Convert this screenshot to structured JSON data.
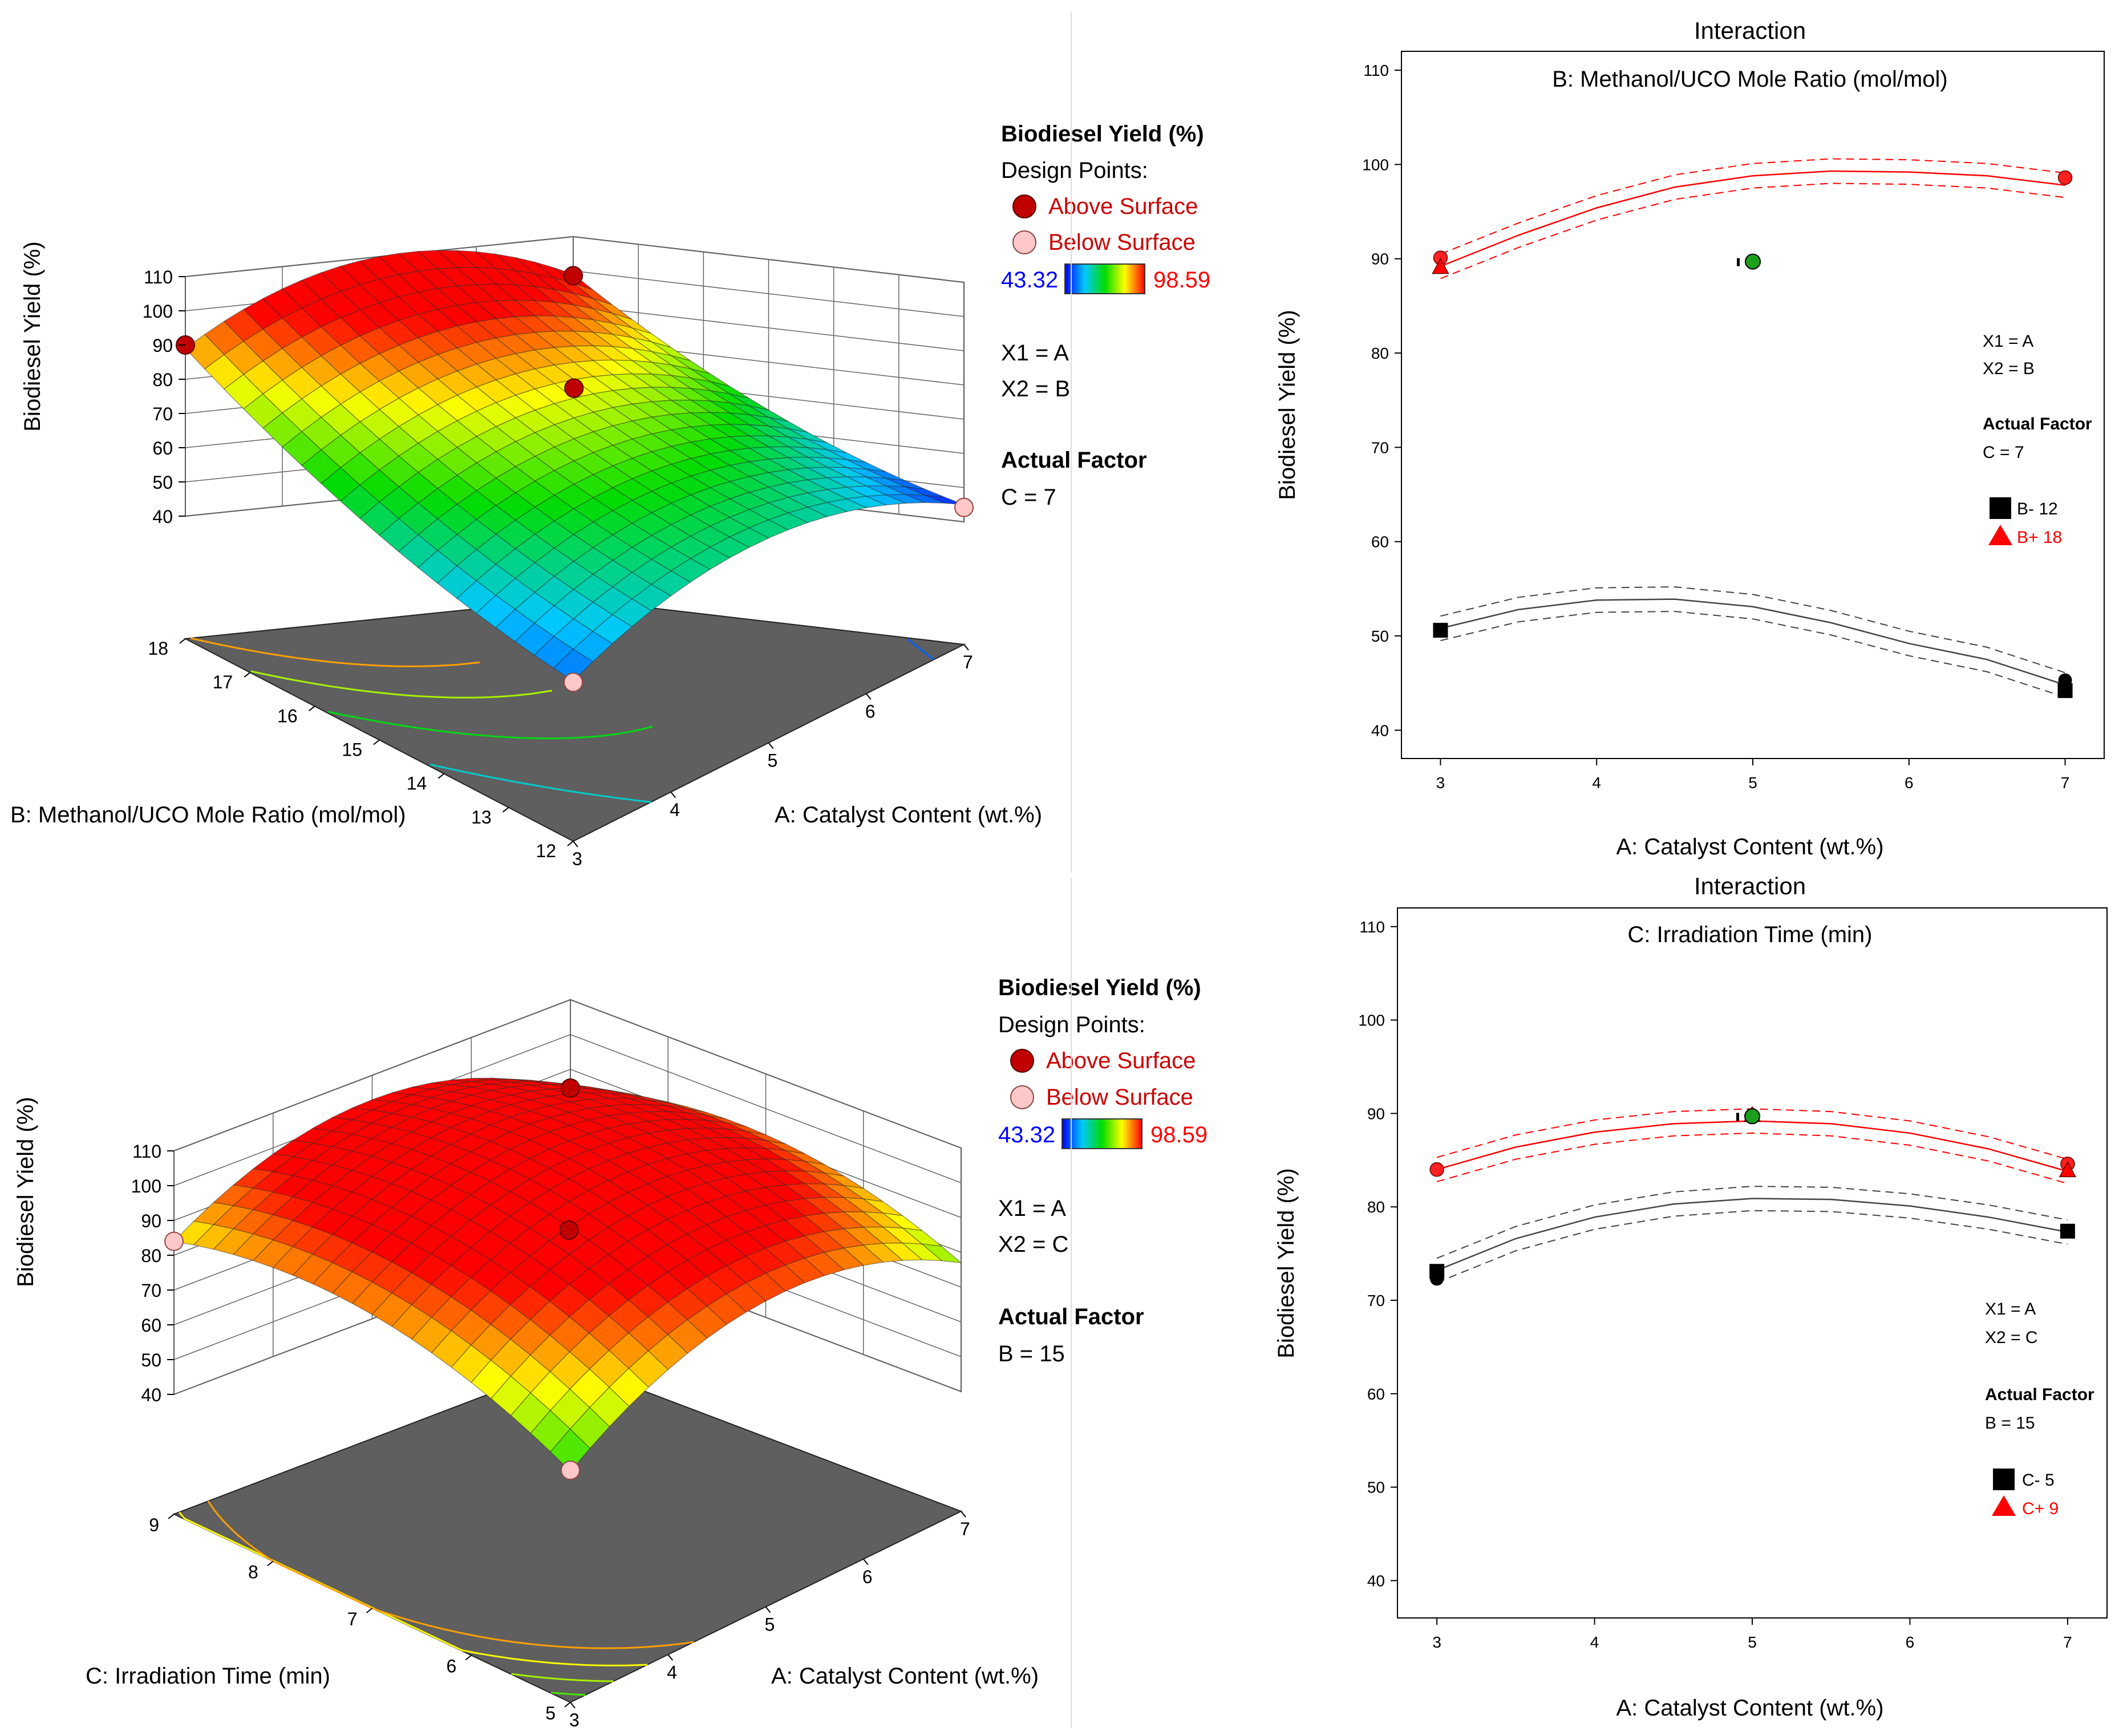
{
  "panels3d": [
    {
      "zlabel": "Biodiesel Yield (%)",
      "x1_axis_label": "A: Catalyst Content (wt.%)",
      "x2_axis_label": "B: Methanol/UCO Mole Ratio (mol/mol)",
      "x1_ticks": [
        "3",
        "4",
        "5",
        "6",
        "7"
      ],
      "x2_ticks": [
        "12",
        "13",
        "14",
        "15",
        "16",
        "17",
        "18"
      ],
      "z_ticks": [
        "40",
        "50",
        "60",
        "70",
        "80",
        "90",
        "100",
        "110"
      ],
      "legend": {
        "title": "Biodiesel Yield (%)",
        "design_points": "Design Points:",
        "above": "Above Surface",
        "below": "Below Surface",
        "min": "43.32",
        "max": "98.59",
        "x1": "X1 = A",
        "x2": "X2 = B",
        "actual_factor": "Actual Factor",
        "actual_value": "C = 7"
      }
    },
    {
      "zlabel": "Biodiesel Yield (%)",
      "x1_axis_label": "A: Catalyst Content (wt.%)",
      "x2_axis_label": "C: Irradiation Time (min)",
      "x1_ticks": [
        "3",
        "4",
        "5",
        "6",
        "7"
      ],
      "x2_ticks": [
        "5",
        "6",
        "7",
        "8",
        "9"
      ],
      "z_ticks": [
        "40",
        "50",
        "60",
        "70",
        "80",
        "90",
        "100",
        "110"
      ],
      "legend": {
        "title": "Biodiesel Yield (%)",
        "design_points": "Design Points:",
        "above": "Above Surface",
        "below": "Below Surface",
        "min": "43.32",
        "max": "98.59",
        "x1": "X1 = A",
        "x2": "X2 = C",
        "actual_factor": "Actual Factor",
        "actual_value": "B = 15"
      }
    }
  ],
  "chart_data": [
    {
      "type": "surface",
      "title": "",
      "xlabel": "A: Catalyst Content (wt.%)",
      "ylabel": "B: Methanol/UCO Mole Ratio (mol/mol)",
      "zlabel": "Biodiesel Yield (%)",
      "xlim": [
        3,
        7
      ],
      "ylim": [
        12,
        18
      ],
      "zlim": [
        40,
        110
      ],
      "corner_values": {
        "A3_B12": 51,
        "A7_B12": 45,
        "A3_B18": 89,
        "A7_B18": 99
      },
      "design_points": [
        {
          "x": 3,
          "y": 18,
          "z": 90,
          "position": "above"
        },
        {
          "x": 7,
          "y": 18,
          "z": 98.6,
          "position": "above"
        },
        {
          "x": 5,
          "y": 15,
          "z": 89.7,
          "position": "above"
        },
        {
          "x": 3,
          "y": 12,
          "z": 50.6,
          "position": "below"
        },
        {
          "x": 7,
          "y": 12,
          "z": 44.2,
          "position": "below"
        }
      ]
    },
    {
      "type": "surface",
      "title": "",
      "xlabel": "A: Catalyst Content (wt.%)",
      "ylabel": "C: Irradiation Time (min)",
      "zlabel": "Biodiesel Yield (%)",
      "xlim": [
        3,
        7
      ],
      "ylim": [
        5,
        9
      ],
      "zlim": [
        40,
        110
      ],
      "corner_values": {
        "A3_C5": 72,
        "A7_C5": 77,
        "A3_C9": 84,
        "A7_C9": 84
      },
      "design_points": [
        {
          "x": 3,
          "y": 9,
          "z": 84,
          "position": "below"
        },
        {
          "x": 7,
          "y": 9,
          "z": 84.6,
          "position": "above"
        },
        {
          "x": 5,
          "y": 7,
          "z": 89.7,
          "position": "above"
        },
        {
          "x": 3,
          "y": 5,
          "z": 72.3,
          "position": "below"
        }
      ]
    },
    {
      "type": "line",
      "title": "Interaction",
      "subtitle": "B: Methanol/UCO Mole Ratio (mol/mol)",
      "xlabel": "A: Catalyst Content (wt.%)",
      "ylabel": "Biodiesel Yield (%)",
      "xlim": [
        2.75,
        7.25
      ],
      "ylim": [
        37,
        112
      ],
      "xticks": [
        "3",
        "4",
        "5",
        "6",
        "7"
      ],
      "yticks": [
        "40",
        "50",
        "60",
        "70",
        "80",
        "90",
        "100",
        "110"
      ],
      "annotation": [
        "X1 = A",
        "X2 = B",
        "Actual Factor",
        "C = 7"
      ],
      "legend": [
        {
          "label": "B- 12",
          "color": "#000000"
        },
        {
          "label": "B+ 18",
          "color": "#ff0000"
        }
      ],
      "series": [
        {
          "name": "B- 12",
          "x": [
            3,
            3.5,
            4,
            4.5,
            5,
            5.5,
            6,
            6.5,
            7
          ],
          "y": [
            50.8,
            52.8,
            53.8,
            53.9,
            53.1,
            51.4,
            49.2,
            47.5,
            44.8
          ],
          "ci": 1.3,
          "points": [
            {
              "x": 3,
              "y": 50.6
            },
            {
              "x": 7,
              "y": 45.3
            },
            {
              "x": 7,
              "y": 44.2
            }
          ]
        },
        {
          "name": "B+ 18",
          "x": [
            3,
            3.5,
            4,
            4.5,
            5,
            5.5,
            6,
            6.5,
            7
          ],
          "y": [
            89.2,
            92.5,
            95.4,
            97.6,
            98.8,
            99.3,
            99.2,
            98.8,
            97.8
          ],
          "ci": 1.3,
          "points": [
            {
              "x": 3,
              "y": 90.1
            },
            {
              "x": 3,
              "y": 89.1
            },
            {
              "x": 7,
              "y": 98.6
            }
          ]
        }
      ],
      "center_point": {
        "x": 5,
        "y": 89.7
      }
    },
    {
      "type": "line",
      "title": "Interaction",
      "subtitle": "C: Irradiation Time (min)",
      "xlabel": "A: Catalyst Content (wt.%)",
      "ylabel": "Biodiesel Yield (%)",
      "xlim": [
        2.75,
        7.25
      ],
      "ylim": [
        36,
        112
      ],
      "xticks": [
        "3",
        "4",
        "5",
        "6",
        "7"
      ],
      "yticks": [
        "40",
        "50",
        "60",
        "70",
        "80",
        "90",
        "100",
        "110"
      ],
      "annotation": [
        "X1 = A",
        "X2 = C",
        "Actual Factor",
        "B = 15"
      ],
      "legend": [
        {
          "label": "C- 5",
          "color": "#000000"
        },
        {
          "label": "C+ 9",
          "color": "#ff0000"
        }
      ],
      "series": [
        {
          "name": "C- 5",
          "x": [
            3,
            3.5,
            4,
            4.5,
            5,
            5.5,
            6,
            6.5,
            7
          ],
          "y": [
            73.2,
            76.6,
            78.9,
            80.3,
            80.9,
            80.8,
            80.1,
            78.9,
            77.3
          ],
          "ci": 1.3,
          "points": [
            {
              "x": 3,
              "y": 73.1
            },
            {
              "x": 3,
              "y": 72.3
            },
            {
              "x": 7,
              "y": 77.4
            }
          ]
        },
        {
          "name": "C+ 9",
          "x": [
            3,
            3.5,
            4,
            4.5,
            5,
            5.5,
            6,
            6.5,
            7
          ],
          "y": [
            84.0,
            86.4,
            88.0,
            88.9,
            89.2,
            88.9,
            87.9,
            86.2,
            83.8
          ],
          "ci": 1.3,
          "points": [
            {
              "x": 3,
              "y": 84.0
            },
            {
              "x": 5,
              "y": 89.8
            },
            {
              "x": 7,
              "y": 84.6
            },
            {
              "x": 7,
              "y": 83.9
            }
          ]
        }
      ],
      "center_point": {
        "x": 5,
        "y": 89.7
      }
    }
  ]
}
